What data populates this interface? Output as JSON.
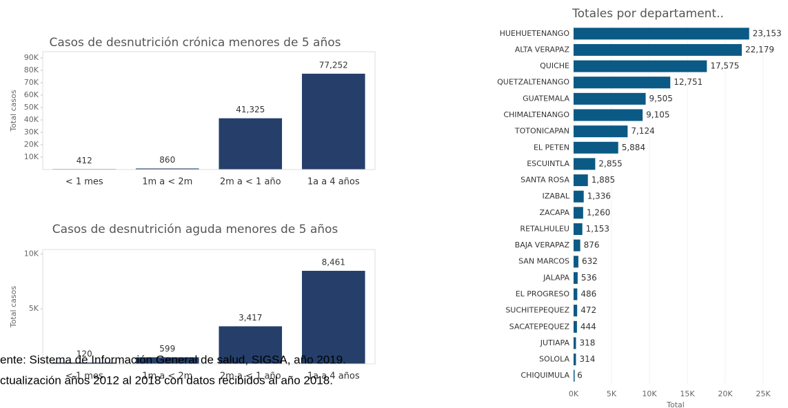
{
  "chart_data": [
    {
      "type": "bar",
      "title": "Casos de desnutrición crónica menores de 5 años",
      "y_label": "Total casos",
      "categories": [
        "< 1 mes",
        "1m a < 2m",
        "2m a < 1 año",
        "1a a 4 años"
      ],
      "values": [
        412,
        860,
        41325,
        77252
      ],
      "value_labels": [
        "412",
        "860",
        "41,325",
        "77,252"
      ],
      "color": "#253f6a",
      "ylim": [
        0,
        95000
      ],
      "yticks": [
        {
          "value": 10000,
          "label": "10K"
        },
        {
          "value": 20000,
          "label": "20K"
        },
        {
          "value": 30000,
          "label": "30K"
        },
        {
          "value": 40000,
          "label": "40K"
        },
        {
          "value": 50000,
          "label": "50K"
        },
        {
          "value": 60000,
          "label": "60K"
        },
        {
          "value": 70000,
          "label": "70K"
        },
        {
          "value": 80000,
          "label": "80K"
        },
        {
          "value": 90000,
          "label": "90K"
        }
      ],
      "grid": false
    },
    {
      "type": "bar",
      "title": "Casos de desnutrición aguda menores de 5 años",
      "y_label": "Total casos",
      "categories": [
        "< 1 mes",
        "1m a < 2m",
        "2m a < 1 año",
        "1a a 4 años"
      ],
      "values": [
        120,
        599,
        3417,
        8461
      ],
      "value_labels": [
        "120",
        "599",
        "3,417",
        "8,461"
      ],
      "color": "#253f6a",
      "ylim": [
        0,
        10400
      ],
      "yticks": [
        {
          "value": 5000,
          "label": "5K"
        },
        {
          "value": 10000,
          "label": "10K"
        }
      ],
      "grid": false
    },
    {
      "type": "hbar",
      "title": "Totales por departament..",
      "x_label": "Total",
      "categories": [
        "HUEHUETENANGO",
        "ALTA VERAPAZ",
        "QUICHE",
        "QUETZALTENANGO",
        "GUATEMALA",
        "CHIMALTENANGO",
        "TOTONICAPAN",
        "EL PETEN",
        "ESCUINTLA",
        "SANTA ROSA",
        "IZABAL",
        "ZACAPA",
        "RETALHULEU",
        "BAJA VERAPAZ",
        "SAN MARCOS",
        "JALAPA",
        "EL PROGRESO",
        "SUCHITEPEQUEZ",
        "SACATEPEQUEZ",
        "JUTIAPA",
        "SOLOLA",
        "CHIQUIMULA"
      ],
      "values": [
        23153,
        22179,
        17575,
        12751,
        9505,
        9105,
        7124,
        5884,
        2855,
        1885,
        1336,
        1260,
        1153,
        876,
        632,
        536,
        486,
        472,
        444,
        318,
        314,
        6
      ],
      "value_labels": [
        "23,153",
        "22,179",
        "17,575",
        "12,751",
        "9,505",
        "9,105",
        "7,124",
        "5,884",
        "2,855",
        "1,885",
        "1,336",
        "1,260",
        "1,153",
        "876",
        "632",
        "536",
        "486",
        "472",
        "444",
        "318",
        "314",
        "6"
      ],
      "color": "#0b5a85",
      "xlim": [
        0,
        28000
      ],
      "xticks": [
        {
          "value": 0,
          "label": "0K"
        },
        {
          "value": 5000,
          "label": "5K"
        },
        {
          "value": 10000,
          "label": "10K"
        },
        {
          "value": 15000,
          "label": "15K"
        },
        {
          "value": 20000,
          "label": "20K"
        },
        {
          "value": 25000,
          "label": "25K"
        }
      ],
      "grid": true
    }
  ],
  "footnotes": [
    "ente: Sistema de Información General de salud, SIGSA, año 2019.",
    "ctualización años 2012 al 2018 con datos recibidos al año 2018."
  ]
}
